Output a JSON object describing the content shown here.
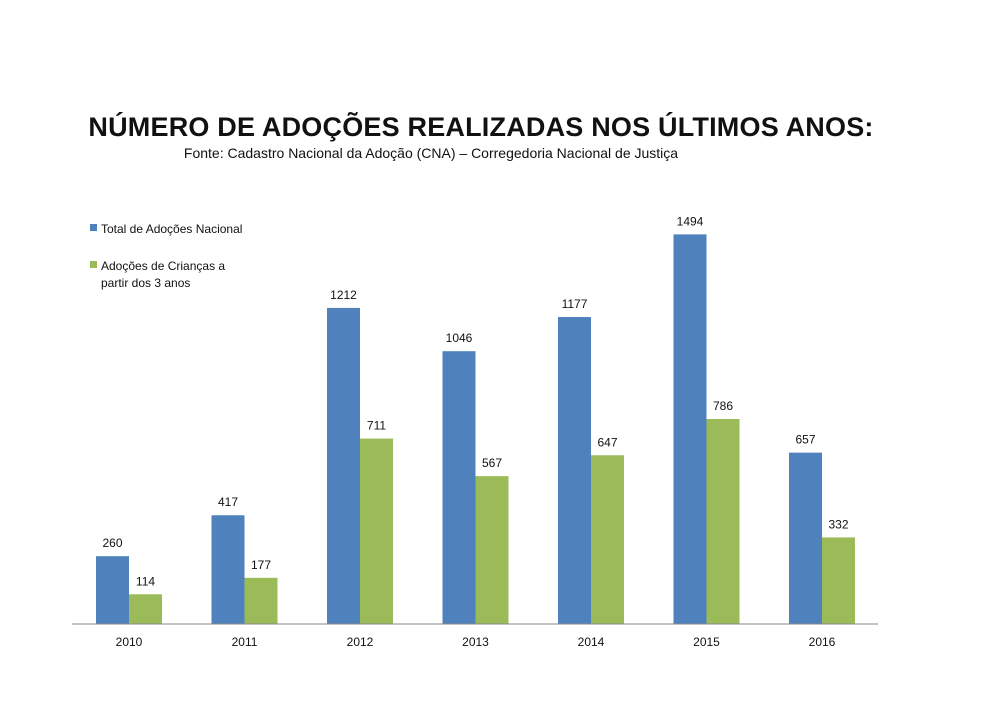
{
  "chart_data": {
    "type": "bar",
    "title": "NÚMERO DE ADOÇÕES REALIZADAS NOS ÚLTIMOS ANOS:",
    "subtitle": "Fonte: Cadastro Nacional da Adoção (CNA) – Corregedoria Nacional de Justiça",
    "categories": [
      "2010",
      "2011",
      "2012",
      "2013",
      "2014",
      "2015",
      "2016"
    ],
    "series": [
      {
        "name": "Total de Adoções Nacional",
        "color": "#4f81bd",
        "values": [
          260,
          417,
          1212,
          1046,
          1177,
          1494,
          657
        ]
      },
      {
        "name": "Adoções de Crianças a partir dos 3 anos",
        "color": "#9bbb59",
        "values": [
          114,
          177,
          711,
          567,
          647,
          786,
          332
        ]
      }
    ],
    "ylim": [
      0,
      1600
    ],
    "grid": false,
    "legend_position": "top-left",
    "xlabel": "",
    "ylabel": ""
  }
}
